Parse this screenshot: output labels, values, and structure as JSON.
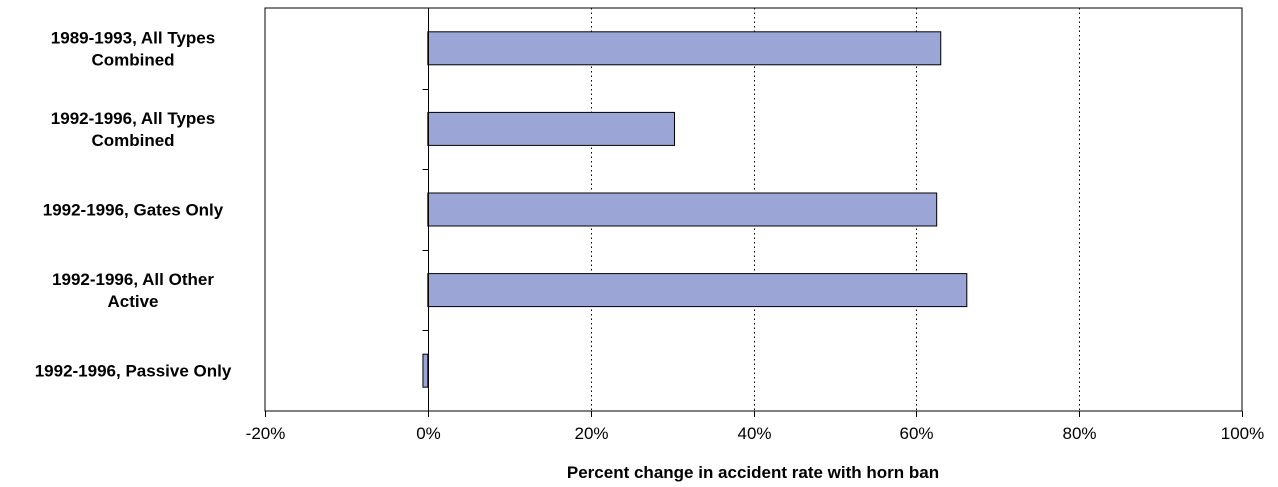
{
  "chart_data": {
    "type": "bar",
    "orientation": "horizontal",
    "categories": [
      [
        "1989-1993, All Types",
        "Combined"
      ],
      [
        "1992-1996, All Types",
        "Combined"
      ],
      [
        "1992-1996, Gates Only"
      ],
      [
        "1992-1996, All Other",
        "Active"
      ],
      [
        "1992-1996, Passive Only"
      ]
    ],
    "values": [
      63,
      30.3,
      62.5,
      66.2,
      -0.6
    ],
    "xlabel": "Percent change in accident rate with horn ban",
    "ylabel": "",
    "title": "",
    "xlim": [
      -20,
      100
    ],
    "xticks": [
      -20,
      0,
      20,
      40,
      60,
      80,
      100
    ],
    "xtick_labels": [
      "-20%",
      "0%",
      "20%",
      "40%",
      "60%",
      "80%",
      "100%"
    ],
    "grid": "vertical dotted",
    "legend": "none",
    "bar_color": "#9ba6d6"
  }
}
